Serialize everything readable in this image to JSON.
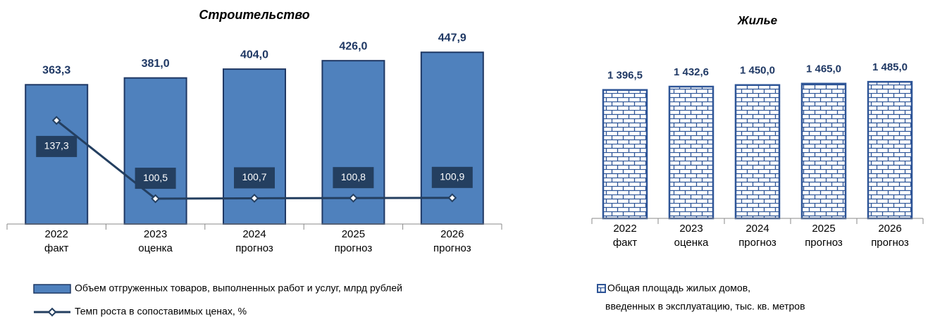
{
  "chart_data": [
    {
      "type": "bar-line",
      "title": "Строительство",
      "categories": [
        [
          "2022",
          "факт"
        ],
        [
          "2023",
          "оценка"
        ],
        [
          "2024",
          "прогноз"
        ],
        [
          "2025",
          "прогноз"
        ],
        [
          "2026",
          "прогноз"
        ]
      ],
      "ylim": [
        0,
        520
      ],
      "y2lim": [
        88.6,
        182.3
      ],
      "series": [
        {
          "name": "Объем отгруженных товаров, выполненных работ и услуг, млрд рублей",
          "type": "bar",
          "color": "#4f81bd",
          "values": [
            363.3,
            381.0,
            404.0,
            426.0,
            447.9
          ],
          "value_labels": [
            "363,3",
            "381,0",
            "404,0",
            "426,0",
            "447,9"
          ]
        },
        {
          "name": "Темп роста в сопоставимых ценах, %",
          "type": "line",
          "axis": "y2",
          "color": "#243f60",
          "values": [
            137.3,
            100.5,
            100.7,
            100.8,
            100.9
          ],
          "value_labels": [
            "137,3",
            "100,5",
            "100,7",
            "100,8",
            "100,9"
          ]
        }
      ]
    },
    {
      "type": "bar",
      "title": "Жилье",
      "categories": [
        [
          "2022",
          "факт"
        ],
        [
          "2023",
          "оценка"
        ],
        [
          "2024",
          "прогноз"
        ],
        [
          "2025",
          "прогноз"
        ],
        [
          "2026",
          "прогноз"
        ]
      ],
      "ylim": [
        0,
        2145
      ],
      "series": [
        {
          "name": [
            "Общая площадь жилых домов,",
            "введенных в эксплуатацию, тыс. кв. метров"
          ],
          "type": "bar",
          "color": "#2e5597",
          "values": [
            1396.5,
            1432.6,
            1450.0,
            1465.0,
            1485.0
          ],
          "value_labels": [
            "1 396,5",
            "1 432,6",
            "1 450,0",
            "1 465,0",
            "1 485,0"
          ]
        }
      ]
    }
  ]
}
